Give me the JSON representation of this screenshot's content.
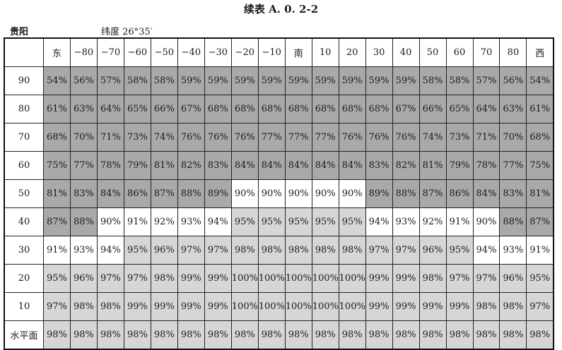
{
  "title": "续表 A. 0. 2-2",
  "city": "贵阳",
  "latitude_label": "纬度 26°35′",
  "shade_colors": {
    "dark": "#a9a9a9",
    "light": "#d6d6d6",
    "white": "#ffffff"
  },
  "columns": [
    "东",
    "−80",
    "−70",
    "−60",
    "−50",
    "−40",
    "−30",
    "−20",
    "−10",
    "南",
    "10",
    "20",
    "30",
    "40",
    "50",
    "60",
    "70",
    "80",
    "西"
  ],
  "rows": [
    {
      "label": "90",
      "values": [
        "54%",
        "56%",
        "57%",
        "58%",
        "58%",
        "59%",
        "59%",
        "59%",
        "59%",
        "59%",
        "59%",
        "59%",
        "59%",
        "59%",
        "58%",
        "58%",
        "57%",
        "56%",
        "54%"
      ]
    },
    {
      "label": "80",
      "values": [
        "61%",
        "63%",
        "64%",
        "65%",
        "66%",
        "67%",
        "68%",
        "68%",
        "68%",
        "68%",
        "68%",
        "68%",
        "68%",
        "67%",
        "66%",
        "65%",
        "64%",
        "63%",
        "61%"
      ]
    },
    {
      "label": "70",
      "values": [
        "68%",
        "70%",
        "71%",
        "73%",
        "74%",
        "76%",
        "76%",
        "76%",
        "77%",
        "77%",
        "77%",
        "76%",
        "76%",
        "76%",
        "74%",
        "73%",
        "71%",
        "70%",
        "68%"
      ]
    },
    {
      "label": "60",
      "values": [
        "75%",
        "77%",
        "78%",
        "79%",
        "81%",
        "82%",
        "83%",
        "84%",
        "84%",
        "84%",
        "84%",
        "84%",
        "83%",
        "82%",
        "81%",
        "79%",
        "78%",
        "77%",
        "75%"
      ]
    },
    {
      "label": "50",
      "values": [
        "81%",
        "83%",
        "84%",
        "86%",
        "87%",
        "88%",
        "89%",
        "90%",
        "90%",
        "90%",
        "90%",
        "90%",
        "89%",
        "88%",
        "87%",
        "86%",
        "84%",
        "83%",
        "81%"
      ]
    },
    {
      "label": "40",
      "values": [
        "87%",
        "88%",
        "90%",
        "91%",
        "92%",
        "93%",
        "94%",
        "95%",
        "95%",
        "95%",
        "95%",
        "95%",
        "94%",
        "93%",
        "92%",
        "91%",
        "90%",
        "88%",
        "87%"
      ]
    },
    {
      "label": "30",
      "values": [
        "91%",
        "93%",
        "94%",
        "95%",
        "96%",
        "97%",
        "97%",
        "98%",
        "98%",
        "98%",
        "98%",
        "98%",
        "97%",
        "97%",
        "96%",
        "95%",
        "94%",
        "93%",
        "91%"
      ]
    },
    {
      "label": "20",
      "values": [
        "95%",
        "96%",
        "97%",
        "97%",
        "98%",
        "99%",
        "99%",
        "100%",
        "100%",
        "100%",
        "100%",
        "100%",
        "99%",
        "99%",
        "98%",
        "97%",
        "97%",
        "96%",
        "95%"
      ]
    },
    {
      "label": "10",
      "values": [
        "97%",
        "98%",
        "98%",
        "99%",
        "99%",
        "99%",
        "99%",
        "100%",
        "100%",
        "100%",
        "100%",
        "100%",
        "99%",
        "99%",
        "99%",
        "99%",
        "98%",
        "98%",
        "97%"
      ]
    },
    {
      "label": "水平面",
      "values": [
        "98%",
        "98%",
        "98%",
        "98%",
        "98%",
        "98%",
        "98%",
        "98%",
        "98%",
        "98%",
        "98%",
        "98%",
        "98%",
        "98%",
        "98%",
        "98%",
        "98%",
        "98%",
        "98%"
      ]
    }
  ]
}
